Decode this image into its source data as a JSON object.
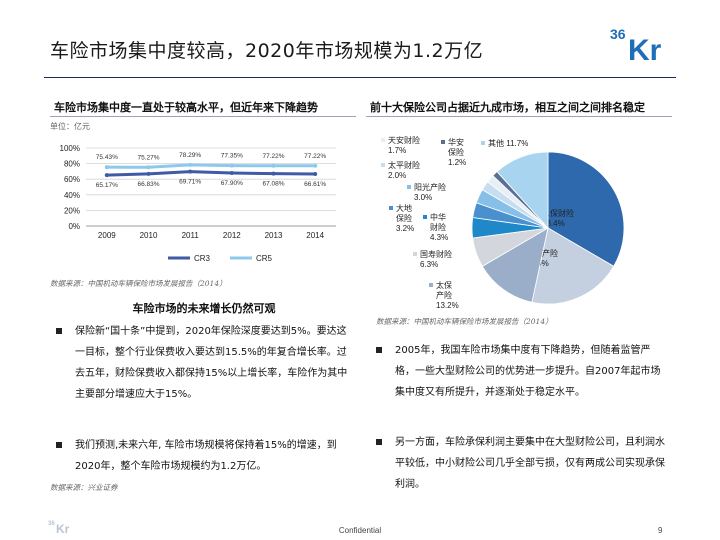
{
  "title": "车险市场集中度较高，2020年市场规模为1.2万亿",
  "brand": {
    "logo_small": "36",
    "logo_large": "Kr",
    "color": "#1e6fb8"
  },
  "left_section": {
    "heading": "车险市场集中度一直处于较高水平，但近年来下降趋势",
    "unit": "单位：亿元",
    "source": "数据来源：中国机动车辆保险市场发展报告（2014）"
  },
  "right_section": {
    "heading": "前十大保险公司占据近九成市场，相互之间之间排名稳定",
    "source": "数据来源：中国机动车辆保险市场发展报告（2014）"
  },
  "sub_heading": "车险市场的未来增长仍然可观",
  "left_bullets": [
    "保险新“国十条”中提到，2020年保险深度要达到5%。要达这一目标，整个行业保费收入要达到15.5%的年复合增长率。过去五年，财险保费收入都保持15%以上增长率，车险作为其中主要部分增速应大于15%。",
    "我们预测,未来六年, 车险市场规模将保持着15%的增速，到2020年，整个车险市场规模约为1.2万亿。"
  ],
  "left_bullets_source": "数据来源：兴业证券",
  "right_bullets": [
    "2005年，我国车险市场集中度有下降趋势，但随着监管严格，一些大型财险公司的优势进一步提升。自2007年起市场集中度又有所提升，并逐渐处于稳定水平。",
    "另一方面，车险承保利润主要集中在大型财险公司，且利润水平较低，中小财险公司几乎全部亏损，仅有两成公司实现承保利润。"
  ],
  "footer": {
    "text": "Confidential",
    "page": "9"
  },
  "chart_data": [
    {
      "type": "line",
      "categories": [
        "2009",
        "2010",
        "2011",
        "2012",
        "2013",
        "2014"
      ],
      "y_ticks": [
        "0%",
        "20%",
        "40%",
        "60%",
        "80%",
        "100%"
      ],
      "ylim": [
        0,
        100
      ],
      "grid": true,
      "legend_position": "bottom",
      "series": [
        {
          "name": "CR3",
          "values": [
            65.17,
            66.83,
            69.71,
            67.9,
            67.08,
            66.61
          ],
          "labels": [
            "65.17%",
            "66.83%",
            "69.71%",
            "67.90%",
            "67.08%",
            "66.61%"
          ],
          "color": "#3f5aa6"
        },
        {
          "name": "CR5",
          "values": [
            75.43,
            75.27,
            78.29,
            77.35,
            77.22,
            77.22
          ],
          "labels": [
            "75.43%",
            "75.27%",
            "78.29%",
            "77.35%",
            "77.22%",
            "77.22%"
          ],
          "color": "#8ec8ea"
        }
      ]
    },
    {
      "type": "pie",
      "slices": [
        {
          "name": "人保财险",
          "label": "33.4%",
          "value": 33.4,
          "color": "#2e69ad"
        },
        {
          "name": "平安产险",
          "label": "20.0%",
          "value": 20.0,
          "color": "#c4cfdf"
        },
        {
          "name": "太保产险",
          "label": "13.2%",
          "value": 13.2,
          "color": "#9aaec9"
        },
        {
          "name": "国寿财险",
          "label": "6.3%",
          "value": 6.3,
          "color": "#d3d6dc"
        },
        {
          "name": "中华财险",
          "label": "4.3%",
          "value": 4.3,
          "color": "#1e88c8"
        },
        {
          "name": "大地保险",
          "label": "3.2%",
          "value": 3.2,
          "color": "#4a90cf"
        },
        {
          "name": "阳光产险",
          "label": "3.0%",
          "value": 3.0,
          "color": "#86bfe8"
        },
        {
          "name": "太平财险",
          "label": "2.0%",
          "value": 2.0,
          "color": "#c9ddf1"
        },
        {
          "name": "天安财险",
          "label": "1.7%",
          "value": 1.7,
          "color": "#e8eef6"
        },
        {
          "name": "华安保险",
          "label": "1.2%",
          "value": 1.2,
          "color": "#5b6f93"
        },
        {
          "name": "其他",
          "label": "11.7%",
          "value": 11.7,
          "color": "#a8d4f0"
        }
      ]
    }
  ]
}
